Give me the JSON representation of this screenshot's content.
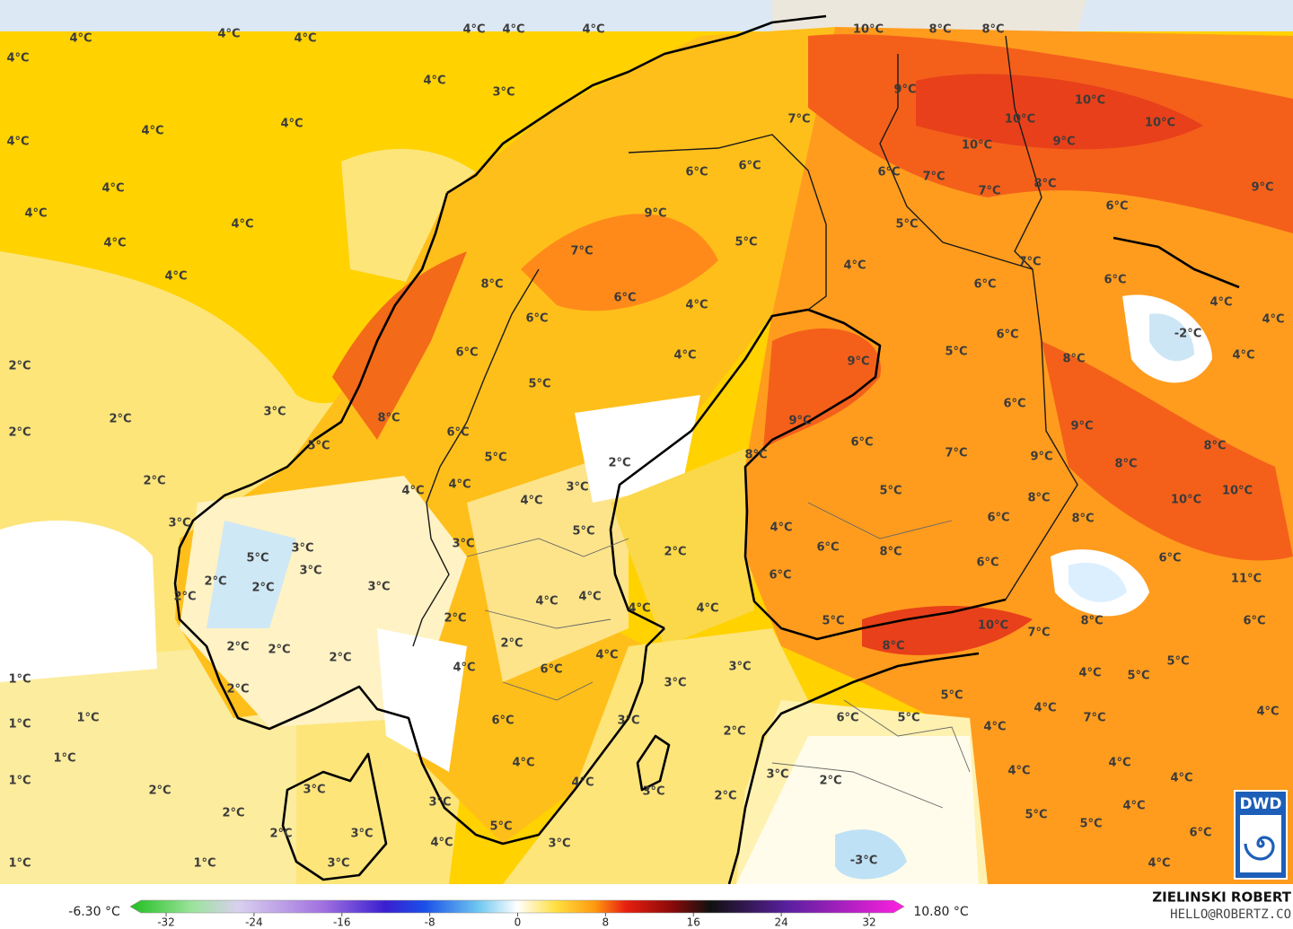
{
  "map": {
    "temperature_labels": [
      "4°C",
      "4°C",
      "4°C",
      "4°C",
      "4°C",
      "4°C",
      "4°C",
      "4°C",
      "3°C",
      "4°C",
      "4°C",
      "4°C",
      "4°C",
      "4°C",
      "4°C",
      "4°C",
      "4°C",
      "10°C",
      "8°C",
      "8°C",
      "9°C",
      "7°C",
      "10°C",
      "10°C",
      "10°C",
      "10°C",
      "9°C",
      "6°C",
      "6°C",
      "6°C",
      "7°C",
      "7°C",
      "8°C",
      "9°C",
      "6°C",
      "9°C",
      "5°C",
      "5°C",
      "7°C",
      "4°C",
      "7°C",
      "6°C",
      "6°C",
      "8°C",
      "6°C",
      "4°C",
      "4°C",
      "6°C",
      "4°C",
      "6°C",
      "-2°C",
      "6°C",
      "4°C",
      "9°C",
      "5°C",
      "8°C",
      "4°C",
      "2°C",
      "5°C",
      "6°C",
      "3°C",
      "2°C",
      "8°C",
      "9°C",
      "9°C",
      "2°C",
      "6°C",
      "5°C",
      "6°C",
      "8°C",
      "7°C",
      "8°C",
      "9°C",
      "5°C",
      "8°C",
      "2°C",
      "2°C",
      "4°C",
      "4°C",
      "3°C",
      "5°C",
      "8°C",
      "10°C",
      "10°C",
      "4°C",
      "6°C",
      "8°C",
      "4°C",
      "5°C",
      "3°C",
      "3°C",
      "6°C",
      "8°C",
      "2°C",
      "3°C",
      "5°C",
      "6°C",
      "11°C",
      "6°C",
      "6°C",
      "3°C",
      "2°C",
      "3°C",
      "2°C",
      "2°C",
      "4°C",
      "4°C",
      "4°C",
      "4°C",
      "10°C",
      "7°C",
      "8°C",
      "6°C",
      "5°C",
      "2°C",
      "2°C",
      "8°C",
      "2°C",
      "2°C",
      "2°C",
      "4°C",
      "4°C",
      "6°C",
      "3°C",
      "5°C",
      "4°C",
      "5°C",
      "1°C",
      "3°C",
      "5°C",
      "2°C",
      "4°C",
      "4°C",
      "1°C",
      "1°C",
      "3°C",
      "6°C",
      "6°C",
      "5°C",
      "7°C",
      "4°C",
      "2°C",
      "1°C",
      "4°C",
      "4°C",
      "4°C",
      "3°C",
      "2°C",
      "1°C",
      "4°C",
      "4°C",
      "3°C",
      "2°C",
      "3°C",
      "2°C",
      "3°C",
      "4°C",
      "2°C",
      "5°C",
      "5°C",
      "5°C",
      "2°C",
      "3°C",
      "6°C",
      "4°C",
      "3°C",
      "-3°C",
      "3°C",
      "1°C",
      "1°C",
      "4°C"
    ]
  },
  "colorbar": {
    "min_label": "-6.30 °C",
    "max_label": "10.80 °C",
    "range": [
      -32,
      32
    ],
    "ticks": [
      -32,
      -24,
      -16,
      -8,
      0,
      8,
      16,
      24,
      32
    ]
  },
  "credit": {
    "author": "ZIELINSKI ROBERT",
    "email": "HELLO@ROBERTZ.CO"
  },
  "logo": "DWD"
}
